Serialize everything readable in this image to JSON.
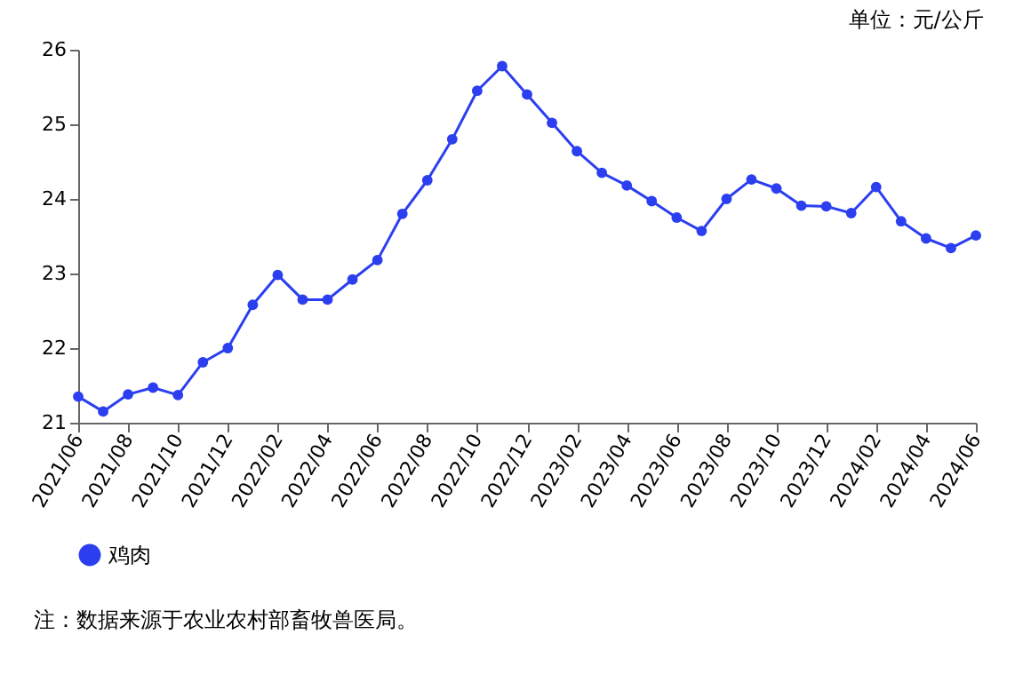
{
  "chart_data": {
    "type": "line",
    "subtitle": "单位：元/公斤",
    "categories": [
      "2021/06",
      null,
      "2021/08",
      null,
      "2021/10",
      null,
      "2021/12",
      null,
      "2022/02",
      null,
      "2022/04",
      null,
      "2022/06",
      null,
      "2022/08",
      null,
      "2022/10",
      null,
      "2022/12",
      null,
      "2023/02",
      null,
      "2023/04",
      null,
      "2023/06",
      null,
      "2023/08",
      null,
      "2023/10",
      null,
      "2023/12",
      null,
      "2024/02",
      null,
      "2024/04",
      null,
      "2024/06"
    ],
    "series": [
      {
        "name": "鸡肉",
        "color": "#2b3ff0",
        "values": [
          21.35,
          21.15,
          21.38,
          21.47,
          21.37,
          21.81,
          22.0,
          22.58,
          22.98,
          22.65,
          22.65,
          22.92,
          23.18,
          23.8,
          24.25,
          24.8,
          25.45,
          25.78,
          25.4,
          25.02,
          24.64,
          24.35,
          24.18,
          23.97,
          23.75,
          23.57,
          24.0,
          24.26,
          24.14,
          23.91,
          23.9,
          23.81,
          24.16,
          23.7,
          23.47,
          23.34,
          23.51
        ]
      }
    ],
    "ylim": [
      21,
      26
    ],
    "yticks": [
      21,
      22,
      23,
      24,
      25,
      26
    ],
    "grid": false,
    "legend": "bottom",
    "marker": "circle",
    "line_style": "solid",
    "annotations": [
      "注：数据来源于农业农村部畜牧兽医局。"
    ]
  }
}
